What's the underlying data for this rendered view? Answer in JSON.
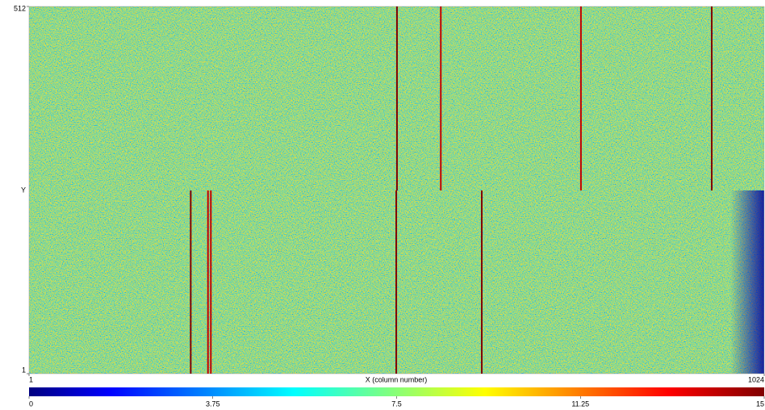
{
  "chart_data": {
    "type": "heatmap",
    "xlabel": "X (column number)",
    "ylabel": "Y",
    "xlim": [
      1,
      1024
    ],
    "ylim": [
      1,
      512
    ],
    "xticks": [
      1,
      1024
    ],
    "yticks": [
      1,
      512
    ],
    "colormap": "jet",
    "clim": [
      0,
      15
    ],
    "cticks": [
      0,
      3.75,
      7.5,
      11.25,
      15
    ],
    "columns": [
      {
        "x": 513,
        "ylim": [
          256,
          512
        ],
        "value": 15
      },
      {
        "x": 574,
        "ylim": [
          256,
          512
        ],
        "value": 14
      },
      {
        "x": 769,
        "ylim": [
          256,
          512
        ],
        "value": 14
      },
      {
        "x": 951,
        "ylim": [
          256,
          512
        ],
        "value": 15
      },
      {
        "x": 226,
        "ylim": [
          1,
          256
        ],
        "value": 15
      },
      {
        "x": 250,
        "ylim": [
          1,
          256
        ],
        "value": 14
      },
      {
        "x": 254,
        "ylim": [
          1,
          256
        ],
        "value": 14
      },
      {
        "x": 512,
        "ylim": [
          1,
          256
        ],
        "value": 15
      },
      {
        "x": 631,
        "ylim": [
          1,
          256
        ],
        "value": 15
      }
    ]
  }
}
